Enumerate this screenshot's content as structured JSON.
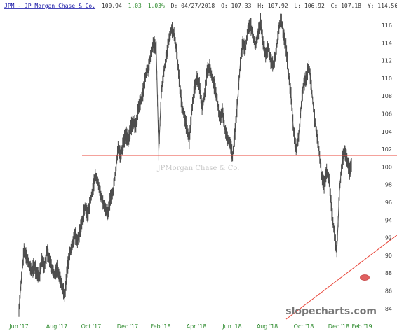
{
  "header": {
    "symbol_link": "JPM - JP Morgan Chase & Co.",
    "last": "100.94",
    "change": "1.03",
    "change_pct": "1.03%",
    "date_text": "D: 04/27/2018",
    "open_text": "O: 107.33",
    "high_text": "H: 107.92",
    "low_text": "L: 106.92",
    "close_text": "C: 107.18",
    "y_text": "Y: 114.56"
  },
  "watermark": "JPMorgan Chase & Co.",
  "brand": "slopecharts.com",
  "colors": {
    "price": "#4d4d4d",
    "trend_line": "#e8463a",
    "link": "#1a1aa8",
    "up": "#2e8b2e",
    "marker": "#e06060"
  },
  "chart_data": {
    "type": "line",
    "x_labels": [
      "Jun '17",
      "Aug '17",
      "Oct '17",
      "Dec '17",
      "Feb '18",
      "Apr '18",
      "Jun '18",
      "Aug '18",
      "Oct '18",
      "Dec '18",
      "Feb '19"
    ],
    "y_ticks": [
      84,
      86,
      88,
      90,
      92,
      94,
      96,
      98,
      100,
      102,
      104,
      106,
      108,
      110,
      112,
      114,
      116
    ],
    "ylim": [
      82.8,
      117.2
    ],
    "horizontal_line": 101.3,
    "diagonal_trendline": {
      "from": [
        "Nov '18",
        82.8
      ],
      "to": [
        "Feb '19",
        92.3
      ]
    },
    "marker": {
      "x": "Jan '19",
      "y": 87.5
    },
    "series": [
      {
        "values": [
          83.8,
          87.5,
          90.6,
          89.8,
          89.0,
          88.2,
          88.8,
          88.0,
          87.6,
          89.5,
          88.7,
          90.5,
          89.5,
          88.5,
          87.8,
          88.5,
          87.5,
          86.5,
          85.4,
          88.5,
          90.2,
          91.2,
          92.4,
          91.6,
          92.8,
          94.0,
          95.5,
          94.6,
          96.0,
          97.4,
          99.0,
          98.4,
          97.0,
          96.0,
          95.2,
          94.8,
          96.5,
          97.2,
          99.5,
          102.2,
          101.2,
          102.7,
          103.7,
          103.0,
          104.5,
          105.0,
          104.7,
          106.7,
          107.5,
          108.8,
          110.6,
          111.2,
          113.0,
          114.0,
          113.2,
          101.7,
          108.5,
          110.8,
          112.5,
          114.4,
          115.6,
          115.0,
          113.0,
          110.0,
          107.0,
          105.8,
          104.4,
          103.0,
          106.5,
          108.8,
          110.0,
          109.2,
          106.7,
          108.2,
          110.8,
          111.2,
          110.0,
          109.0,
          107.5,
          105.2,
          106.4,
          104.2,
          103.2,
          102.7,
          101.2,
          104.0,
          107.5,
          111.6,
          114.0,
          113.2,
          115.5,
          116.1,
          114.8,
          113.7,
          115.0,
          116.4,
          114.0,
          112.6,
          113.5,
          112.0,
          111.5,
          112.7,
          115.2,
          117.0,
          115.0,
          113.5,
          110.5,
          108.0,
          104.0,
          102.0,
          103.5,
          107.0,
          109.5,
          110.0,
          111.5,
          109.0,
          106.0,
          104.0,
          101.8,
          99.0,
          98.0,
          99.5,
          98.5,
          95.0,
          92.5,
          90.5,
          97.2,
          100.5,
          101.8,
          100.8,
          99.5,
          100.5
        ]
      }
    ]
  }
}
